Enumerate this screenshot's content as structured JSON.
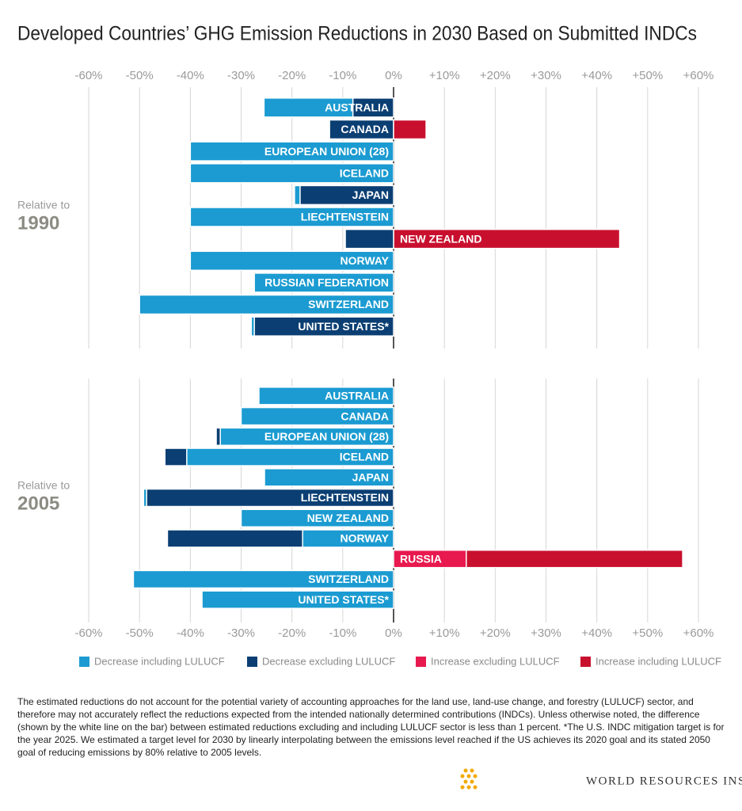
{
  "title": "Developed Countries’ GHG Emission Reductions in 2030 Based on Submitted INDCs",
  "chart_data": [
    {
      "type": "bar",
      "orientation": "horizontal",
      "label": "Relative to",
      "period": "1990",
      "xaxis": "top",
      "categories": [
        "AUSTRALIA",
        "CANADA",
        "EUROPEAN UNION (28)",
        "ICELAND",
        "JAPAN",
        "LIECHTENSTEIN",
        "NEW ZEALAND",
        "NORWAY",
        "RUSSIAN FEDERATION",
        "SWITZERLAND",
        "UNITED STATES*"
      ],
      "series": [
        {
          "name": "Decrease including LULUCF",
          "color": "#1b9bd1",
          "values": [
            -25.5,
            null,
            -40,
            -40,
            -19.5,
            -40,
            null,
            -40,
            -27.4,
            -50,
            -28
          ]
        },
        {
          "name": "Decrease excluding LULUCF",
          "color": "#0b3f73",
          "values": [
            -8,
            -12.6,
            null,
            null,
            -18.4,
            null,
            -9.5,
            null,
            null,
            null,
            -27.4
          ]
        },
        {
          "name": "Increase excluding LULUCF",
          "color": "#e8194f",
          "values": [
            null,
            null,
            null,
            null,
            null,
            null,
            null,
            null,
            null,
            null,
            null
          ]
        },
        {
          "name": "Increase including LULUCF",
          "color": "#c8102e",
          "values": [
            null,
            6.4,
            null,
            null,
            null,
            null,
            44.5,
            null,
            null,
            null,
            null
          ]
        }
      ],
      "xlim": [
        -60,
        60
      ],
      "xticks": [
        {
          "value": -60,
          "label": "-60%"
        },
        {
          "value": -50,
          "label": "-50%"
        },
        {
          "value": -40,
          "label": "-40%"
        },
        {
          "value": -30,
          "label": "-30%"
        },
        {
          "value": -20,
          "label": "-20%"
        },
        {
          "value": -10,
          "label": "-10%"
        },
        {
          "value": 0,
          "label": "0%"
        },
        {
          "value": 10,
          "label": "+10%"
        },
        {
          "value": 20,
          "label": "+20%"
        },
        {
          "value": 30,
          "label": "+30%"
        },
        {
          "value": 40,
          "label": "+40%"
        },
        {
          "value": 50,
          "label": "+50%"
        },
        {
          "value": 60,
          "label": "+60%"
        }
      ],
      "grid": true
    },
    {
      "type": "bar",
      "orientation": "horizontal",
      "label": "Relative to",
      "period": "2005",
      "xaxis": "bottom",
      "categories": [
        "AUSTRALIA",
        "CANADA",
        "EUROPEAN UNION (28)",
        "ICELAND",
        "JAPAN",
        "LIECHTENSTEIN",
        "NEW ZEALAND",
        "NORWAY",
        "RUSSIA",
        "SWITZERLAND",
        "UNITED STATES*"
      ],
      "series": [
        {
          "name": "Decrease including LULUCF",
          "color": "#1b9bd1",
          "values": [
            -26.5,
            -30,
            -34.1,
            -40.7,
            -25.4,
            -49.2,
            -30,
            -17.9,
            null,
            -51.2,
            -37.7
          ]
        },
        {
          "name": "Decrease excluding LULUCF",
          "color": "#0b3f73",
          "values": [
            null,
            null,
            -34.9,
            -45,
            null,
            -48.6,
            null,
            -44.5,
            null,
            null,
            null
          ]
        },
        {
          "name": "Increase excluding LULUCF",
          "color": "#e8194f",
          "values": [
            null,
            null,
            null,
            null,
            null,
            null,
            null,
            null,
            14.3,
            null,
            null
          ]
        },
        {
          "name": "Increase including LULUCF",
          "color": "#c8102e",
          "values": [
            null,
            null,
            null,
            null,
            null,
            null,
            null,
            null,
            56.9,
            null,
            null
          ]
        }
      ],
      "xlim": [
        -60,
        60
      ],
      "xticks": [
        {
          "value": -60,
          "label": "-60%"
        },
        {
          "value": -50,
          "label": "-50%"
        },
        {
          "value": -40,
          "label": "-40%"
        },
        {
          "value": -30,
          "label": "-30%"
        },
        {
          "value": -20,
          "label": "-20%"
        },
        {
          "value": -10,
          "label": "-10%"
        },
        {
          "value": 0,
          "label": "0%"
        },
        {
          "value": 10,
          "label": "+10%"
        },
        {
          "value": 20,
          "label": "+20%"
        },
        {
          "value": 30,
          "label": "+30%"
        },
        {
          "value": 40,
          "label": "+40%"
        },
        {
          "value": 50,
          "label": "+50%"
        },
        {
          "value": 60,
          "label": "+60%"
        }
      ],
      "grid": true
    }
  ],
  "footnote": "The estimated reductions do not account for the potential variety of accounting approaches for the land use, land-use change, and forestry (LULUCF) sector, and therefore may not accurately reflect the reductions expected from the intended nationally determined contributions (INDCs). Unless otherwise noted, the difference (shown by the white line on the bar) between estimated reductions excluding and including LULUCF sector is less than 1 percent. *The U.S. INDC mitigation target is for the year 2025. We estimated a target level for 2030 by linearly interpolating between the emissions level reached if the US achieves its 2020 goal and its stated 2050 goal of reducing emissions by 80% relative to 2005 levels.",
  "logo": "WORLD RESOURCES INSTITUTE"
}
